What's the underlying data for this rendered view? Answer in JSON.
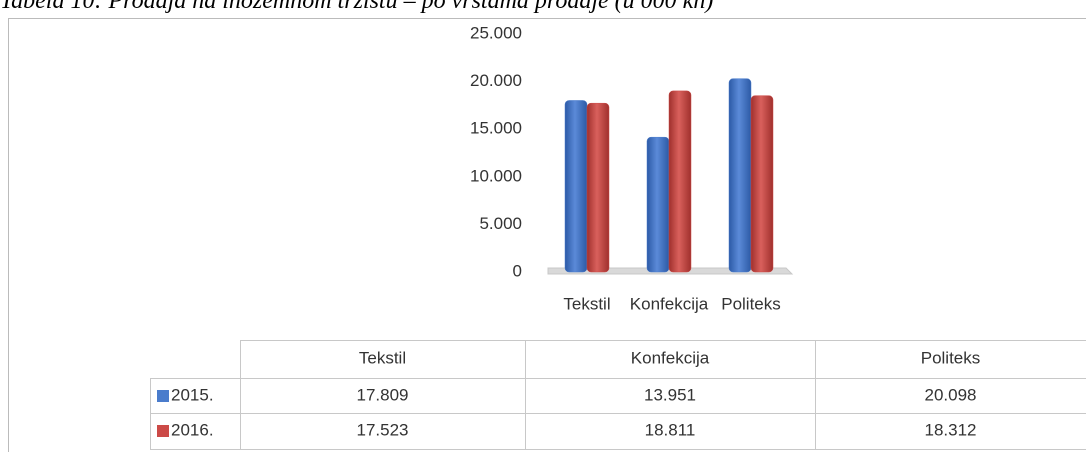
{
  "chart_data": {
    "type": "bar",
    "title": "Tabela 10: Prodaja na inozemnom tržištu – po vrstama prodaje (u 000 kn)",
    "categories": [
      "Tekstil",
      "Konfekcija",
      "Politeks"
    ],
    "series": [
      {
        "name": "2015.",
        "color": "#4a7ccc",
        "values": [
          17809,
          13951,
          20098
        ],
        "value_labels": [
          "17.809",
          "13.951",
          "20.098"
        ]
      },
      {
        "name": "2016.",
        "color": "#cc4a47",
        "values": [
          17523,
          18811,
          18312
        ],
        "value_labels": [
          "17.523",
          "18.811",
          "18.312"
        ]
      }
    ],
    "ylim": [
      0,
      25000
    ],
    "yticks": [
      0,
      {
        "value": 5000,
        "label": "5.000"
      },
      {
        "value": 10000,
        "label": "10.000"
      },
      {
        "value": 15000,
        "label": "15.000"
      },
      {
        "value": 20000,
        "label": "20.000"
      },
      {
        "value": 25000,
        "label": "25.000"
      }
    ],
    "grid": false
  }
}
